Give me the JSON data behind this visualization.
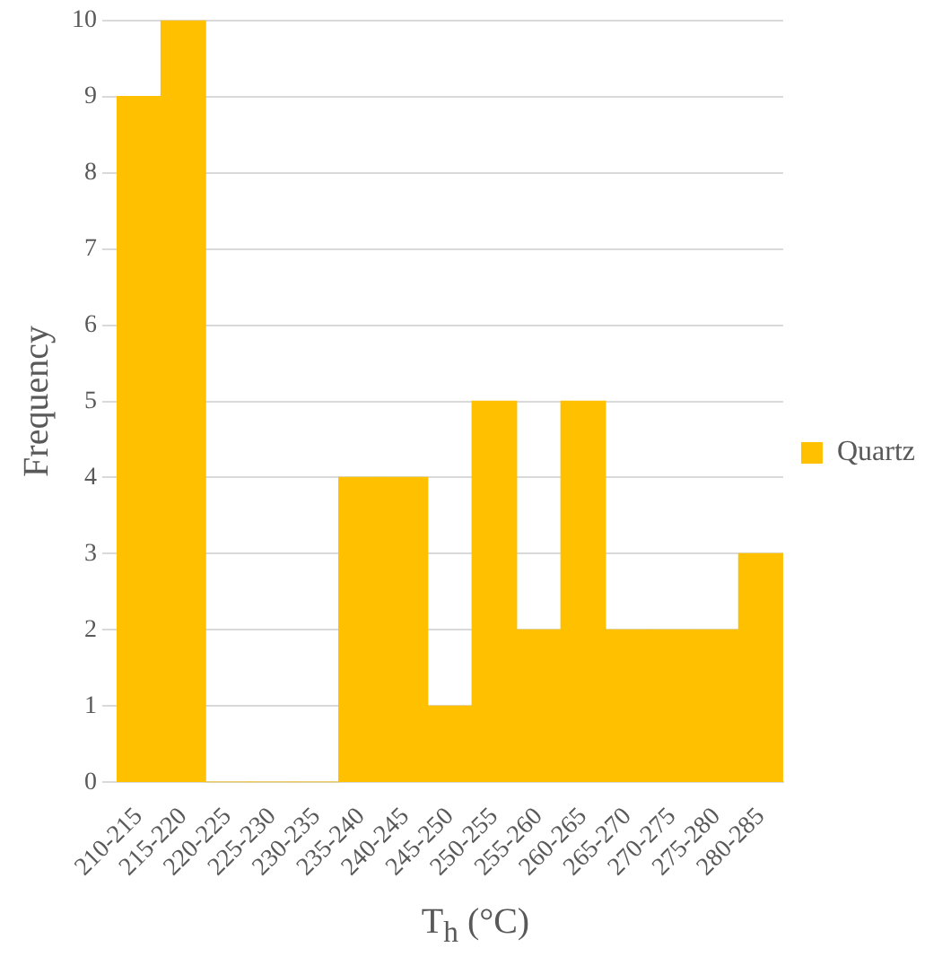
{
  "chart_data": {
    "type": "bar",
    "xlabel": "T$_{h}$ (°C)",
    "ylabel": "Frequency",
    "categories": [
      "210-215",
      "215-220",
      "220-225",
      "225-230",
      "230-235",
      "235-240",
      "240-245",
      "245-250",
      "250-255",
      "255-260",
      "260-265",
      "265-270",
      "270-275",
      "275-280",
      "280-285"
    ],
    "series": [
      {
        "name": "Quartz",
        "color": "#ffc000",
        "values": [
          9,
          10,
          0,
          0,
          0,
          4,
          4,
          1,
          5,
          2,
          5,
          2,
          2,
          2,
          3
        ]
      }
    ],
    "ylim": [
      0,
      10
    ],
    "yticks": [
      0,
      1,
      2,
      3,
      4,
      5,
      6,
      7,
      8,
      9,
      10
    ],
    "grid": "y",
    "legend": "right"
  }
}
